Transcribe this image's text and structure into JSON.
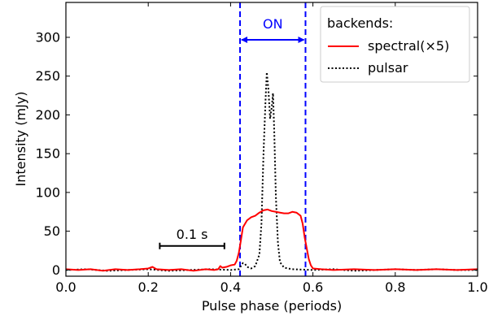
{
  "chart_data": {
    "type": "line",
    "xlabel": "Pulse phase (periods)",
    "ylabel": "Intensity (mJy)",
    "xlim": [
      0.0,
      1.0
    ],
    "ylim": [
      -8,
      345
    ],
    "x_ticks": [
      "0.0",
      "0.2",
      "0.4",
      "0.6",
      "0.8",
      "1.0"
    ],
    "x_tick_values": [
      0.0,
      0.2,
      0.4,
      0.6,
      0.8,
      1.0
    ],
    "y_ticks": [
      "0",
      "50",
      "100",
      "150",
      "200",
      "250",
      "300"
    ],
    "y_tick_values": [
      0,
      50,
      100,
      150,
      200,
      250,
      300
    ],
    "grid": false,
    "legend": {
      "placement": "top-right",
      "title": "backends:",
      "entries": [
        {
          "label": "spectral(×5)",
          "color": "#ff0000",
          "style": "solid"
        },
        {
          "label": "pulsar",
          "color": "#000000",
          "style": "dotted"
        }
      ]
    },
    "on_window": {
      "x_start": 0.423,
      "x_end": 0.582,
      "label": "ON",
      "color": "#0000ff"
    },
    "scale_bar": {
      "x_start": 0.228,
      "x_end": 0.385,
      "y": 31,
      "label": "0.1 s"
    },
    "series": [
      {
        "name": "spectral(×5)",
        "color": "#ff0000",
        "points": [
          [
            0.0,
            1
          ],
          [
            0.03,
            0
          ],
          [
            0.06,
            1
          ],
          [
            0.09,
            -1
          ],
          [
            0.12,
            1
          ],
          [
            0.15,
            0
          ],
          [
            0.18,
            1
          ],
          [
            0.2,
            2
          ],
          [
            0.21,
            4
          ],
          [
            0.22,
            1
          ],
          [
            0.25,
            0
          ],
          [
            0.28,
            1
          ],
          [
            0.31,
            -1
          ],
          [
            0.34,
            1
          ],
          [
            0.36,
            0
          ],
          [
            0.37,
            1
          ],
          [
            0.375,
            5
          ],
          [
            0.38,
            3
          ],
          [
            0.39,
            4
          ],
          [
            0.4,
            6
          ],
          [
            0.41,
            7
          ],
          [
            0.415,
            12
          ],
          [
            0.42,
            22
          ],
          [
            0.425,
            38
          ],
          [
            0.43,
            55
          ],
          [
            0.44,
            64
          ],
          [
            0.45,
            68
          ],
          [
            0.46,
            70
          ],
          [
            0.47,
            74
          ],
          [
            0.48,
            77
          ],
          [
            0.49,
            78
          ],
          [
            0.5,
            76
          ],
          [
            0.51,
            75
          ],
          [
            0.52,
            74
          ],
          [
            0.53,
            73
          ],
          [
            0.54,
            73
          ],
          [
            0.55,
            75
          ],
          [
            0.56,
            74
          ],
          [
            0.57,
            70
          ],
          [
            0.575,
            60
          ],
          [
            0.58,
            42
          ],
          [
            0.585,
            28
          ],
          [
            0.59,
            14
          ],
          [
            0.595,
            6
          ],
          [
            0.6,
            2
          ],
          [
            0.62,
            1
          ],
          [
            0.65,
            0
          ],
          [
            0.7,
            1
          ],
          [
            0.75,
            0
          ],
          [
            0.8,
            1
          ],
          [
            0.85,
            0
          ],
          [
            0.9,
            1
          ],
          [
            0.95,
            0
          ],
          [
            1.0,
            1
          ]
        ]
      },
      {
        "name": "pulsar",
        "color": "#000000",
        "points": [
          [
            0.0,
            0
          ],
          [
            0.05,
            1
          ],
          [
            0.1,
            -1
          ],
          [
            0.15,
            0
          ],
          [
            0.2,
            1
          ],
          [
            0.25,
            -1
          ],
          [
            0.3,
            0
          ],
          [
            0.35,
            1
          ],
          [
            0.4,
            0
          ],
          [
            0.42,
            1
          ],
          [
            0.425,
            5
          ],
          [
            0.43,
            9
          ],
          [
            0.435,
            8
          ],
          [
            0.44,
            4
          ],
          [
            0.45,
            2
          ],
          [
            0.46,
            5
          ],
          [
            0.47,
            20
          ],
          [
            0.475,
            60
          ],
          [
            0.48,
            150
          ],
          [
            0.485,
            220
          ],
          [
            0.488,
            255
          ],
          [
            0.492,
            232
          ],
          [
            0.496,
            195
          ],
          [
            0.5,
            210
          ],
          [
            0.503,
            228
          ],
          [
            0.506,
            180
          ],
          [
            0.51,
            95
          ],
          [
            0.515,
            35
          ],
          [
            0.52,
            10
          ],
          [
            0.53,
            3
          ],
          [
            0.55,
            1
          ],
          [
            0.6,
            0
          ],
          [
            0.65,
            1
          ],
          [
            0.7,
            -1
          ],
          [
            0.75,
            0
          ],
          [
            0.8,
            1
          ],
          [
            0.85,
            0
          ],
          [
            0.9,
            1
          ],
          [
            0.95,
            0
          ],
          [
            1.0,
            0
          ]
        ]
      }
    ]
  }
}
